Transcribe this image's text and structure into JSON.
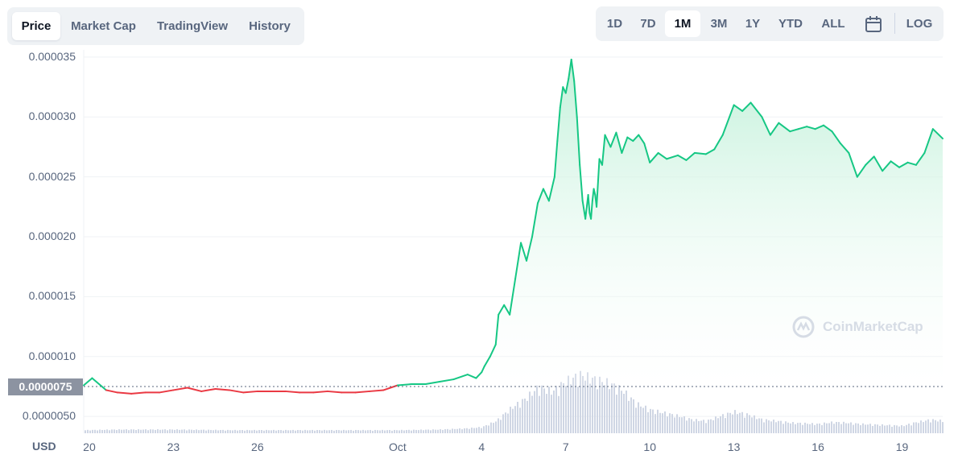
{
  "tabs": [
    {
      "label": "Price",
      "active": true
    },
    {
      "label": "Market Cap",
      "active": false
    },
    {
      "label": "TradingView",
      "active": false
    },
    {
      "label": "History",
      "active": false
    }
  ],
  "ranges": [
    {
      "label": "1D",
      "active": false
    },
    {
      "label": "7D",
      "active": false
    },
    {
      "label": "1M",
      "active": true
    },
    {
      "label": "3M",
      "active": false
    },
    {
      "label": "1Y",
      "active": false
    },
    {
      "label": "YTD",
      "active": false
    },
    {
      "label": "ALL",
      "active": false
    }
  ],
  "log_label": "LOG",
  "currency_label": "USD",
  "current_price_label": "0.0000075",
  "watermark": "CoinMarketCap",
  "colors": {
    "up": "#16c784",
    "down": "#ea3943",
    "area_top": "#bff0d8",
    "volume": "#cfd6e4",
    "grid": "#eff2f5",
    "price_tag": "#8c93a1"
  },
  "chart_data": {
    "type": "line",
    "y_tick_labels": [
      "0.000035",
      "0.000030",
      "0.000025",
      "0.000020",
      "0.000015",
      "0.000010",
      "0.0000050"
    ],
    "y_ticks": [
      3.5e-05,
      3e-05,
      2.5e-05,
      2e-05,
      1.5e-05,
      1e-05,
      5e-06
    ],
    "x_tick_labels": [
      "20",
      "23",
      "26",
      "Oct",
      "4",
      "7",
      "10",
      "13",
      "16",
      "19"
    ],
    "x_ticks_day": [
      1,
      4,
      7,
      12,
      15,
      18,
      21,
      24,
      27,
      30
    ],
    "x_range_day": [
      0.8,
      31.45
    ],
    "y_range": [
      3.6e-06,
      3.56e-05
    ],
    "baseline_price": 7.5e-06,
    "grid": true,
    "series": [
      {
        "x_day": [
          0.8,
          1.1,
          1.6,
          2.0,
          2.5,
          3.0,
          3.5,
          4.0,
          4.5,
          5.0,
          5.5,
          6.0,
          6.5,
          7.0,
          7.5,
          8.0,
          8.5,
          9.0,
          9.5,
          10.0,
          10.5,
          11.0,
          11.5,
          12.0,
          12.5,
          13.0,
          13.5,
          14.0,
          14.5,
          14.8,
          15.0,
          15.1,
          15.3,
          15.5,
          15.6,
          15.8,
          16.0,
          16.2,
          16.4,
          16.6,
          16.8,
          17.0,
          17.2,
          17.4,
          17.5,
          17.6,
          17.7,
          17.8,
          17.9,
          18.0,
          18.1,
          18.2,
          18.3,
          18.4,
          18.5,
          18.6,
          18.7,
          18.8,
          18.85,
          18.9,
          18.95,
          19.0,
          19.05,
          19.1,
          19.2,
          19.3,
          19.4,
          19.6,
          19.8,
          20.0,
          20.2,
          20.4,
          20.6,
          20.8,
          21.0,
          21.3,
          21.6,
          22.0,
          22.3,
          22.6,
          23.0,
          23.3,
          23.6,
          24.0,
          24.3,
          24.6,
          25.0,
          25.3,
          25.6,
          26.0,
          26.3,
          26.6,
          26.9,
          27.2,
          27.5,
          27.8,
          28.1,
          28.4,
          28.7,
          29.0,
          29.3,
          29.6,
          29.9,
          30.2,
          30.5,
          30.8,
          31.1,
          31.45
        ],
        "y": [
          7.6e-06,
          8.2e-06,
          7.2e-06,
          7e-06,
          6.9e-06,
          7e-06,
          7e-06,
          7.2e-06,
          7.4e-06,
          7.1e-06,
          7.3e-06,
          7.2e-06,
          7e-06,
          7.1e-06,
          7.1e-06,
          7.1e-06,
          7e-06,
          7e-06,
          7.1e-06,
          7e-06,
          7e-06,
          7.1e-06,
          7.2e-06,
          7.6e-06,
          7.7e-06,
          7.7e-06,
          7.9e-06,
          8.1e-06,
          8.5e-06,
          8.2e-06,
          8.7e-06,
          9.2e-06,
          1e-05,
          1.1e-05,
          1.35e-05,
          1.43e-05,
          1.35e-05,
          1.65e-05,
          1.95e-05,
          1.8e-05,
          2e-05,
          2.28e-05,
          2.4e-05,
          2.3e-05,
          2.4e-05,
          2.5e-05,
          2.8e-05,
          3.08e-05,
          3.25e-05,
          3.2e-05,
          3.32e-05,
          3.48e-05,
          3.3e-05,
          3e-05,
          2.6e-05,
          2.3e-05,
          2.15e-05,
          2.35e-05,
          2.2e-05,
          2.15e-05,
          2.3e-05,
          2.4e-05,
          2.35e-05,
          2.25e-05,
          2.65e-05,
          2.6e-05,
          2.85e-05,
          2.75e-05,
          2.87e-05,
          2.7e-05,
          2.83e-05,
          2.8e-05,
          2.85e-05,
          2.78e-05,
          2.62e-05,
          2.7e-05,
          2.65e-05,
          2.68e-05,
          2.64e-05,
          2.7e-05,
          2.69e-05,
          2.73e-05,
          2.85e-05,
          3.1e-05,
          3.05e-05,
          3.12e-05,
          3e-05,
          2.85e-05,
          2.95e-05,
          2.88e-05,
          2.9e-05,
          2.92e-05,
          2.9e-05,
          2.93e-05,
          2.88e-05,
          2.78e-05,
          2.7e-05,
          2.5e-05,
          2.6e-05,
          2.67e-05,
          2.55e-05,
          2.63e-05,
          2.58e-05,
          2.62e-05,
          2.6e-05,
          2.7e-05,
          2.9e-05,
          2.82e-05
        ]
      }
    ],
    "volume": {
      "x_day": [
        0.8,
        2.0,
        4.0,
        6.0,
        8.0,
        10.0,
        12.0,
        13.5,
        14.5,
        15.0,
        15.5,
        16.0,
        16.5,
        17.0,
        17.5,
        18.0,
        18.5,
        19.0,
        19.5,
        20.0,
        20.5,
        21.0,
        21.5,
        22.0,
        22.5,
        23.0,
        23.5,
        24.0,
        24.5,
        25.0,
        25.5,
        26.0,
        26.5,
        27.0,
        27.5,
        28.0,
        28.5,
        29.0,
        29.5,
        30.0,
        30.5,
        31.0,
        31.45
      ],
      "rel": [
        0.05,
        0.06,
        0.06,
        0.05,
        0.05,
        0.05,
        0.05,
        0.06,
        0.08,
        0.1,
        0.2,
        0.4,
        0.55,
        0.75,
        0.68,
        0.85,
        0.95,
        0.88,
        0.82,
        0.7,
        0.48,
        0.38,
        0.33,
        0.28,
        0.22,
        0.2,
        0.28,
        0.35,
        0.3,
        0.22,
        0.2,
        0.17,
        0.16,
        0.15,
        0.18,
        0.17,
        0.15,
        0.14,
        0.13,
        0.12,
        0.18,
        0.22,
        0.2
      ]
    }
  }
}
